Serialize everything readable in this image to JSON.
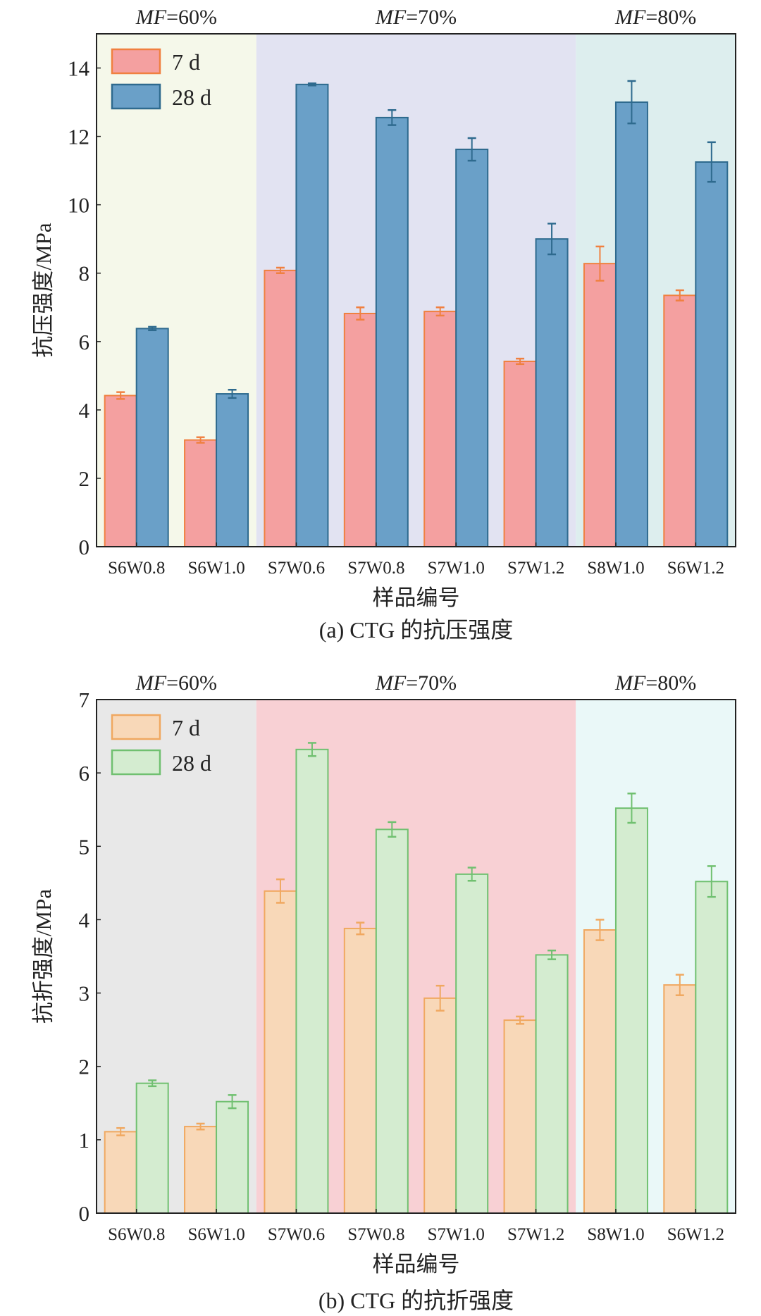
{
  "chart_data": [
    {
      "type": "bar",
      "caption": "(a) CTG 的抗压强度",
      "xlabel": "样品编号",
      "ylabel": "抗压强度/MPa",
      "ylim": [
        0,
        15
      ],
      "yticks": [
        0,
        2,
        4,
        6,
        8,
        10,
        12,
        14
      ],
      "categories": [
        "S6W0.8",
        "S6W1.0",
        "S7W0.6",
        "S7W0.8",
        "S7W1.0",
        "S7W1.2",
        "S8W1.0",
        "S6W1.2"
      ],
      "legend_position": "top-left",
      "regions": [
        {
          "label_italic": "MF",
          "label": "=60%",
          "from": 0,
          "to": 2,
          "color": "#f5f8ea"
        },
        {
          "label_italic": "MF",
          "label": "=70%",
          "from": 2,
          "to": 6,
          "color": "#e2e3f2"
        },
        {
          "label_italic": "MF",
          "label": "=80%",
          "from": 6,
          "to": 8,
          "color": "#ddeeee"
        }
      ],
      "series": [
        {
          "name": "7 d",
          "fill": "#f4a0a0",
          "stroke": "#f08040",
          "values": [
            4.42,
            3.12,
            8.08,
            6.82,
            6.88,
            5.42,
            8.28,
            7.35
          ],
          "errors": [
            0.1,
            0.08,
            0.08,
            0.18,
            0.12,
            0.08,
            0.5,
            0.15
          ]
        },
        {
          "name": "28 d",
          "fill": "#6aa0c8",
          "stroke": "#2e6a8e",
          "values": [
            6.38,
            4.47,
            13.52,
            12.55,
            11.62,
            9.0,
            13.0,
            11.25
          ],
          "errors": [
            0.05,
            0.12,
            0.03,
            0.22,
            0.33,
            0.45,
            0.62,
            0.58
          ]
        }
      ]
    },
    {
      "type": "bar",
      "caption": "(b) CTG 的抗折强度",
      "xlabel": "样品编号",
      "ylabel": "抗折强度/MPa",
      "ylim": [
        0,
        7
      ],
      "yticks": [
        0,
        1,
        2,
        3,
        4,
        5,
        6,
        7
      ],
      "categories": [
        "S6W0.8",
        "S6W1.0",
        "S7W0.6",
        "S7W0.8",
        "S7W1.0",
        "S7W1.2",
        "S8W1.0",
        "S6W1.2"
      ],
      "legend_position": "top-left",
      "regions": [
        {
          "label_italic": "MF",
          "label": "=60%",
          "from": 0,
          "to": 2,
          "color": "#e8e8e8"
        },
        {
          "label_italic": "MF",
          "label": "=70%",
          "from": 2,
          "to": 6,
          "color": "#f8d0d4"
        },
        {
          "label_italic": "MF",
          "label": "=80%",
          "from": 6,
          "to": 8,
          "color": "#eaf8f8"
        }
      ],
      "series": [
        {
          "name": "7 d",
          "fill": "#f8d8b8",
          "stroke": "#f0a860",
          "values": [
            1.11,
            1.18,
            4.39,
            3.88,
            2.93,
            2.63,
            3.86,
            3.11
          ],
          "errors": [
            0.05,
            0.04,
            0.16,
            0.08,
            0.17,
            0.05,
            0.14,
            0.14
          ]
        },
        {
          "name": "28 d",
          "fill": "#d4ecd0",
          "stroke": "#70c070",
          "values": [
            1.77,
            1.52,
            6.32,
            5.23,
            4.62,
            3.52,
            5.52,
            4.52
          ],
          "errors": [
            0.04,
            0.09,
            0.09,
            0.1,
            0.09,
            0.06,
            0.2,
            0.21
          ]
        }
      ]
    }
  ]
}
